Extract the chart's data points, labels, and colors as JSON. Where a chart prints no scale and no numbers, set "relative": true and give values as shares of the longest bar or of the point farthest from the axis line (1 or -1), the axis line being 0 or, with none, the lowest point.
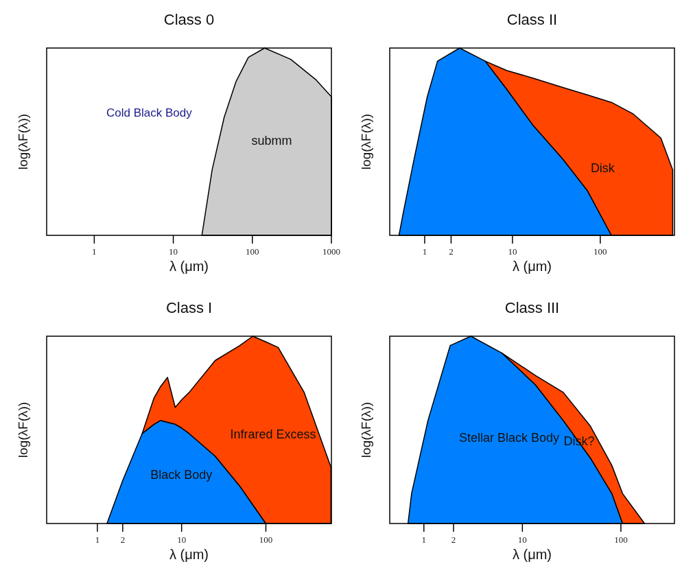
{
  "chart_data": [
    {
      "type": "area",
      "title": "Class 0",
      "xlabel": "λ (μm)",
      "ylabel": "log(λF(λ))",
      "log": "x",
      "relative": true,
      "xlim": [
        0.25,
        1000
      ],
      "xticks": [
        1,
        10,
        100,
        1000
      ],
      "annotations": [
        "Cold Black Body"
      ],
      "x": [
        23,
        31,
        44,
        62,
        89,
        143,
        305,
        640,
        1000
      ],
      "series": [
        {
          "name": "submm",
          "color": "#cccccc",
          "values": [
            0,
            0.35,
            0.63,
            0.82,
            0.95,
            1,
            0.94,
            0.83,
            0.74
          ]
        }
      ]
    },
    {
      "type": "area",
      "title": "Class II",
      "xlabel": "λ (μm)",
      "ylabel": "log(λF(λ))",
      "log": "x",
      "relative": true,
      "stacked": true,
      "xlim": [
        0.4,
        700
      ],
      "xticks": [
        1,
        2,
        10,
        100
      ],
      "x": [
        0.51,
        0.57,
        0.76,
        1.07,
        1.4,
        2.5,
        4.9,
        8.6,
        17,
        37,
        71,
        134,
        234,
        489,
        668
      ],
      "series": [
        {
          "color": "#0080ff",
          "values": [
            0,
            0.12,
            0.41,
            0.74,
            0.93,
            1,
            0.93,
            0.78,
            0.59,
            0.41,
            0.24,
            0,
            null,
            null,
            null
          ]
        },
        {
          "name": "Disk",
          "color": "#ff4500",
          "values": [
            null,
            null,
            null,
            null,
            null,
            null,
            0,
            0.1,
            0.25,
            0.38,
            0.51,
            0.71,
            0.65,
            0.52,
            0.35
          ]
        }
      ]
    },
    {
      "type": "area",
      "title": "Class I",
      "xlabel": "λ (μm)",
      "ylabel": "log(λF(λ))",
      "log": "x",
      "relative": true,
      "stacked": true,
      "xlim": [
        0.25,
        600
      ],
      "xticks": [
        1,
        2,
        10,
        100
      ],
      "x": [
        1.3,
        2,
        3.4,
        4.7,
        5.6,
        6.8,
        8.4,
        10,
        12.3,
        25,
        49,
        70,
        100,
        140,
        285,
        593
      ],
      "series": [
        {
          "name": "Black Body",
          "color": "#0080ff",
          "values": [
            0,
            0.23,
            0.48,
            0.53,
            0.55,
            0.54,
            0.53,
            0.51,
            0.48,
            0.36,
            0.2,
            0.1,
            0,
            null,
            null,
            null
          ]
        },
        {
          "name": "Infrared Excess",
          "color": "#ff4500",
          "values": [
            null,
            null,
            0,
            0.14,
            0.18,
            0.24,
            0.09,
            0.15,
            0.22,
            0.51,
            0.75,
            0.9,
            0.97,
            0.94,
            0.7,
            0.3
          ]
        }
      ]
    },
    {
      "type": "area",
      "title": "Class III",
      "xlabel": "λ (μm)",
      "ylabel": "log(λF(λ))",
      "log": "x",
      "relative": true,
      "stacked": true,
      "xlim": [
        0.45,
        350
      ],
      "xticks": [
        1,
        2,
        10,
        100
      ],
      "x": [
        0.69,
        0.75,
        1.1,
        1.85,
        3,
        6.2,
        13.6,
        26,
        49,
        81,
        104,
        174
      ],
      "series": [
        {
          "name": "Stellar Black Body",
          "color": "#0080ff",
          "values": [
            0,
            0.16,
            0.55,
            0.95,
            1,
            0.91,
            0.74,
            0.55,
            0.35,
            0.16,
            0,
            null
          ]
        },
        {
          "name": "Disk?",
          "color": "#ff4500",
          "values": [
            null,
            null,
            null,
            null,
            null,
            0,
            0.05,
            0.15,
            0.17,
            0.15,
            0.16,
            0
          ]
        }
      ]
    }
  ]
}
